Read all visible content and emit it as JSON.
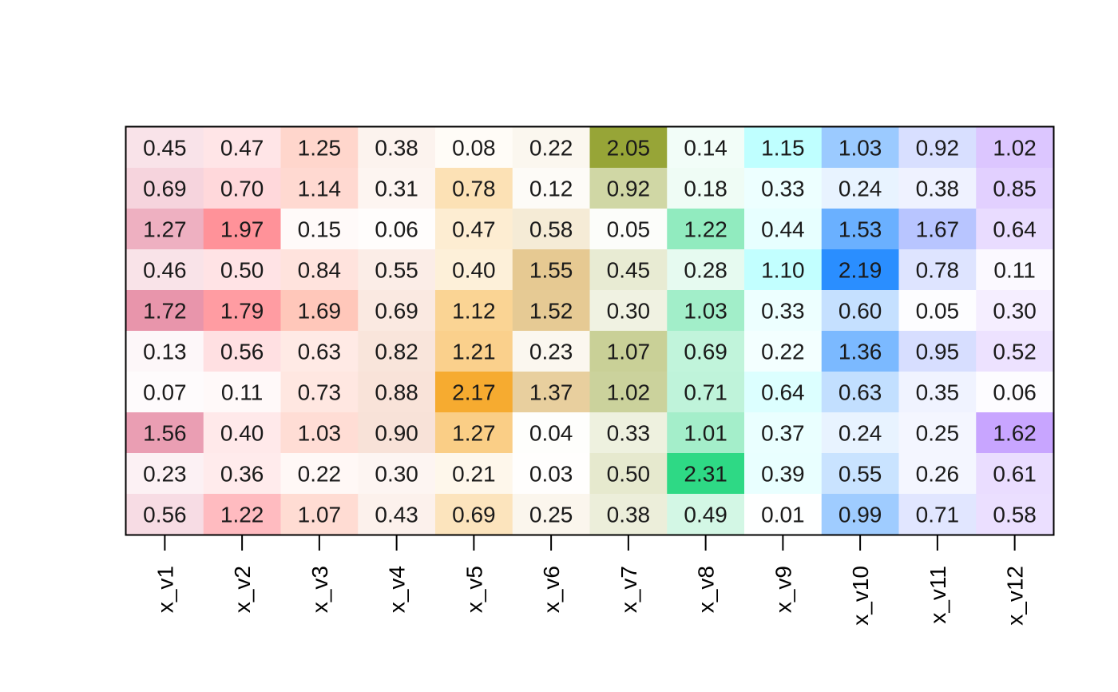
{
  "chart_data": {
    "type": "heatmap",
    "title": "",
    "xlabel": "",
    "ylabel": "",
    "columns": [
      "x_v1",
      "x_v2",
      "x_v3",
      "x_v4",
      "x_v5",
      "x_v6",
      "x_v7",
      "x_v8",
      "x_v9",
      "x_v10",
      "x_v11",
      "x_v12"
    ],
    "column_colors": [
      "#E0708E",
      "#FF7F87",
      "#FFB3A1",
      "#EEB59A",
      "#F5A623",
      "#D9AE5C",
      "#8A9A1E",
      "#2ED985",
      "#7FFFFF",
      "#1E88FF",
      "#9DAFFF",
      "#B07FFF"
    ],
    "values": [
      [
        "0.45",
        "0.47",
        "1.25",
        "0.38",
        "0.08",
        "0.22",
        "2.05",
        "0.14",
        "1.15",
        "1.03",
        "0.92",
        "1.02"
      ],
      [
        "0.69",
        "0.70",
        "1.14",
        "0.31",
        "0.78",
        "0.12",
        "0.92",
        "0.18",
        "0.33",
        "0.24",
        "0.38",
        "0.85"
      ],
      [
        "1.27",
        "1.97",
        "0.15",
        "0.06",
        "0.47",
        "0.58",
        "0.05",
        "1.22",
        "0.44",
        "1.53",
        "1.67",
        "0.64"
      ],
      [
        "0.46",
        "0.50",
        "0.84",
        "0.55",
        "0.40",
        "1.55",
        "0.45",
        "0.28",
        "1.10",
        "2.19",
        "0.78",
        "0.11"
      ],
      [
        "1.72",
        "1.79",
        "1.69",
        "0.69",
        "1.12",
        "1.52",
        "0.30",
        "1.03",
        "0.33",
        "0.60",
        "0.05",
        "0.30"
      ],
      [
        "0.13",
        "0.56",
        "0.63",
        "0.82",
        "1.21",
        "0.23",
        "1.07",
        "0.69",
        "0.22",
        "1.36",
        "0.95",
        "0.52"
      ],
      [
        "0.07",
        "0.11",
        "0.73",
        "0.88",
        "2.17",
        "1.37",
        "1.02",
        "0.71",
        "0.64",
        "0.63",
        "0.35",
        "0.06"
      ],
      [
        "1.56",
        "0.40",
        "1.03",
        "0.90",
        "1.27",
        "0.04",
        "0.33",
        "1.01",
        "0.37",
        "0.24",
        "0.25",
        "1.62"
      ],
      [
        "0.23",
        "0.36",
        "0.22",
        "0.30",
        "0.21",
        "0.03",
        "0.50",
        "2.31",
        "0.39",
        "0.55",
        "0.26",
        "0.61"
      ],
      [
        "0.56",
        "1.22",
        "1.07",
        "0.43",
        "0.69",
        "0.25",
        "0.38",
        "0.49",
        "0.01",
        "0.99",
        "0.71",
        "0.58"
      ]
    ]
  }
}
